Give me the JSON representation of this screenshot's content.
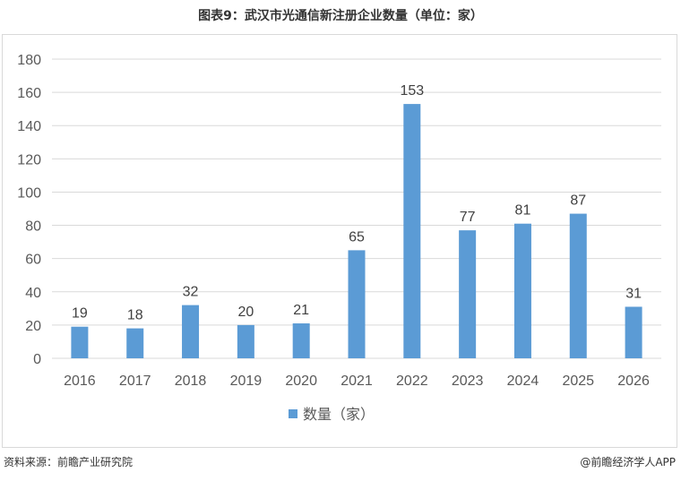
{
  "title": "图表9：武汉市光通信新注册企业数量（单位：家）",
  "footer": {
    "source": "资料来源：前瞻产业研究院",
    "credit": "@前瞻经济学人APP"
  },
  "colors": {
    "bar": "#5b9bd5",
    "grid": "#d9d9d9",
    "axis_text": "#595959"
  },
  "chart_data": {
    "type": "bar",
    "categories": [
      "2016",
      "2017",
      "2018",
      "2019",
      "2020",
      "2021",
      "2022",
      "2023",
      "2024",
      "2025",
      "2026"
    ],
    "series": [
      {
        "name": "数量（家）",
        "values": [
          19,
          18,
          32,
          20,
          21,
          65,
          153,
          77,
          81,
          87,
          31
        ]
      }
    ],
    "data_labels": [
      "19",
      "18",
      "32",
      "20",
      "21",
      "65",
      "153",
      "77",
      "81",
      "87",
      "31"
    ],
    "y_ticks": [
      "0",
      "20",
      "40",
      "60",
      "80",
      "100",
      "120",
      "140",
      "160",
      "180"
    ],
    "ylim": [
      0,
      180
    ],
    "grid": true,
    "legend_position": "bottom"
  }
}
